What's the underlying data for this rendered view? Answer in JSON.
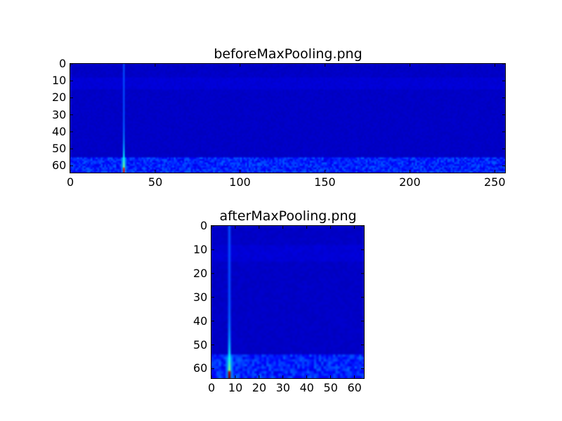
{
  "chart_data": [
    {
      "type": "heatmap",
      "title": "beforeMaxPooling.png",
      "colormap": "jet",
      "shape": [
        64,
        256
      ],
      "xlim": [
        0,
        256
      ],
      "ylim": [
        64,
        0
      ],
      "xticks": [
        "0",
        "50",
        "100",
        "150",
        "200",
        "250"
      ],
      "yticks": [
        "0",
        "10",
        "20",
        "30",
        "40",
        "50",
        "60"
      ],
      "features": {
        "peak_column": 31,
        "peak_row": 63,
        "noise_band_rows": [
          55,
          64
        ],
        "background": "low"
      }
    },
    {
      "type": "heatmap",
      "title": "afterMaxPooling.png",
      "colormap": "jet",
      "shape": [
        64,
        64
      ],
      "xlim": [
        0,
        64
      ],
      "ylim": [
        64,
        0
      ],
      "xticks": [
        "0",
        "10",
        "20",
        "30",
        "40",
        "50",
        "60"
      ],
      "yticks": [
        "0",
        "10",
        "20",
        "30",
        "40",
        "50",
        "60"
      ],
      "features": {
        "peak_column": 7,
        "peak_row": 63,
        "noise_band_rows": [
          54,
          64
        ],
        "background": "low"
      }
    }
  ]
}
